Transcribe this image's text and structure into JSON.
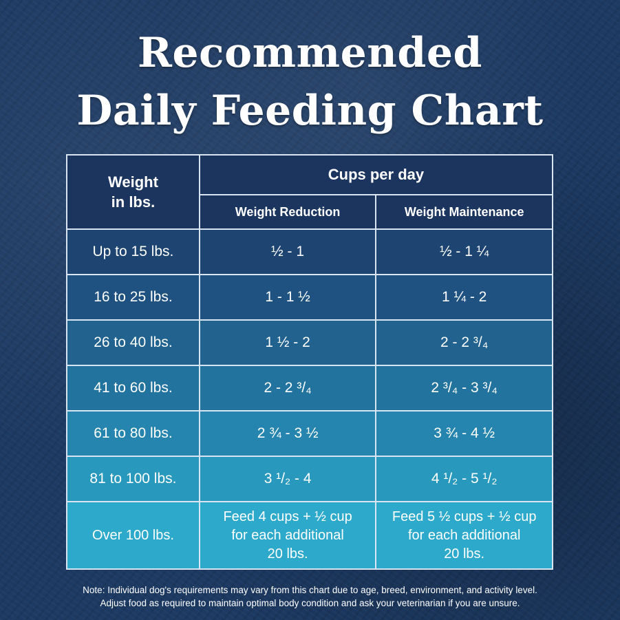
{
  "title": {
    "line1": "Recommended",
    "line2": "Daily Feeding Chart"
  },
  "table": {
    "weight_header_line1": "Weight",
    "weight_header_line2": "in lbs.",
    "cups_header": "Cups per day",
    "col_reduction": "Weight Reduction",
    "col_maintenance": "Weight Maintenance",
    "rows": [
      {
        "weight": "Up to 15 lbs.",
        "reduction": "½  - 1",
        "maintenance": "½  - 1 ¼"
      },
      {
        "weight": "16 to 25 lbs.",
        "reduction": "1  - 1 ½",
        "maintenance": "1 ¼  - 2"
      },
      {
        "weight": "26 to 40 lbs.",
        "reduction": "1 ½  - 2",
        "maintenance": "2 - 2 ³/₄"
      },
      {
        "weight": "41 to 60 lbs.",
        "reduction": "2 - 2 ³/₄",
        "maintenance": "2 ³/₄ - 3 ³/₄"
      },
      {
        "weight": "61 to 80 lbs.",
        "reduction": "2 ¾  - 3 ½",
        "maintenance": "3 ¾  - 4 ½"
      },
      {
        "weight": "81 to 100 lbs.",
        "reduction": "3 ¹/₂ - 4",
        "maintenance": "4 ¹/₂ - 5 ¹/₂"
      }
    ],
    "last_row": {
      "weight": "Over 100 lbs.",
      "reduction_lines": [
        "Feed 4 cups + ½ cup",
        "for each additional",
        "20 lbs."
      ],
      "maintenance_lines": [
        "Feed 5 ½ cups + ½ cup",
        "for each additional",
        "20 lbs."
      ]
    }
  },
  "note": {
    "line1": "Note: Individual dog's requirements may vary from this chart due to age, breed, environment, and activity level.",
    "line2": "Adjust food as required to maintain optimal body condition and ask your veterinarian if you are unsure."
  }
}
